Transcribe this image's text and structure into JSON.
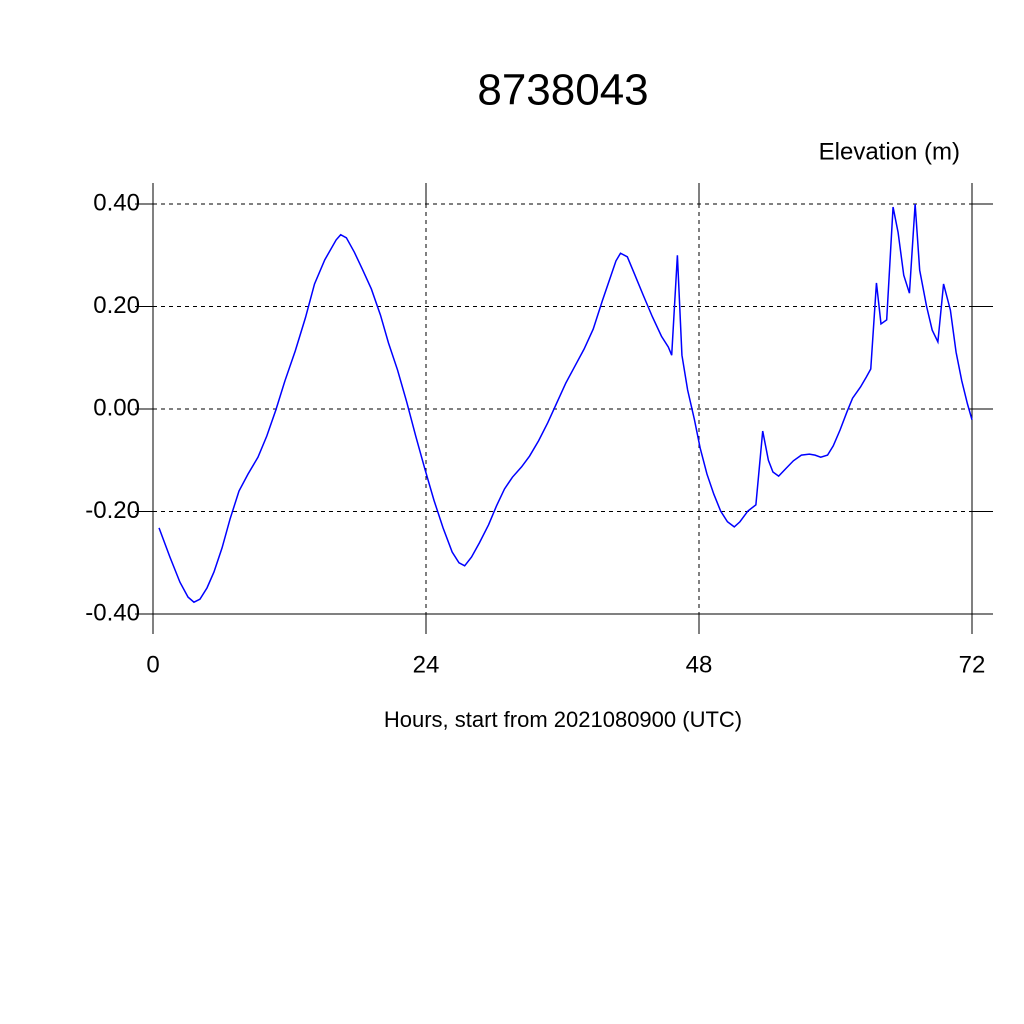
{
  "chart_data": {
    "type": "line",
    "title": "8738043",
    "subtitle": "Elevation (m)",
    "x_label": "Hours, start from 2021080900 (UTC)",
    "xlim": [
      0,
      72
    ],
    "xticks": [
      0,
      24,
      48,
      72
    ],
    "ylim": [
      -0.4,
      0.4
    ],
    "yticks": [
      {
        "value": -0.4,
        "label": "-0.40"
      },
      {
        "value": -0.2,
        "label": "-0.20"
      },
      {
        "value": 0,
        "label": "0.00"
      },
      {
        "value": 0.2,
        "label": "0.20"
      },
      {
        "value": 0.4,
        "label": "0.40"
      }
    ],
    "grid": true,
    "series": [
      {
        "color": "#0000ff",
        "x": [
          0.53,
          1.49,
          2.37,
          3.08,
          3.6,
          4.13,
          4.75,
          5.36,
          6.07,
          6.77,
          7.56,
          8.35,
          9.23,
          10.0,
          10.8,
          11.6,
          12.5,
          13.4,
          14.2,
          15.1,
          16.1,
          16.5,
          17.0,
          17.7,
          18.4,
          19.2,
          20.0,
          20.7,
          21.5,
          22.3,
          23.1,
          23.9,
          24.7,
          25.5,
          26.3,
          26.9,
          27.4,
          28.0,
          28.7,
          29.5,
          30.2,
          30.9,
          31.6,
          32.4,
          33.1,
          33.9,
          34.7,
          35.5,
          36.3,
          37.1,
          37.9,
          38.7,
          39.5,
          40.3,
          40.7,
          41.1,
          41.7,
          42.3,
          43.1,
          43.9,
          44.7,
          45.3,
          45.6,
          46.1,
          46.5,
          47.0,
          47.6,
          48.1,
          48.7,
          49.3,
          49.9,
          50.5,
          51.1,
          51.6,
          52.3,
          53.0,
          53.6,
          54.1,
          54.5,
          55.0,
          55.6,
          56.3,
          57.0,
          57.7,
          58.2,
          58.7,
          59.3,
          59.8,
          60.4,
          61.0,
          61.5,
          62.2,
          62.7,
          63.1,
          63.6,
          64.0,
          64.5,
          65.06,
          65.5,
          66.0,
          66.5,
          67.0,
          67.4,
          68.0,
          68.5,
          69.0,
          69.5,
          70.1,
          70.6,
          71.1,
          71.6,
          72.0
        ],
        "values": [
          -0.232,
          -0.289,
          -0.338,
          -0.367,
          -0.377,
          -0.371,
          -0.349,
          -0.318,
          -0.271,
          -0.215,
          -0.16,
          -0.127,
          -0.094,
          -0.053,
          -0.002,
          0.055,
          0.113,
          0.178,
          0.244,
          0.291,
          0.33,
          0.34,
          0.334,
          0.306,
          0.273,
          0.234,
          0.183,
          0.129,
          0.076,
          0.014,
          -0.053,
          -0.117,
          -0.178,
          -0.232,
          -0.279,
          -0.3,
          -0.306,
          -0.289,
          -0.261,
          -0.226,
          -0.189,
          -0.156,
          -0.133,
          -0.113,
          -0.092,
          -0.062,
          -0.027,
          0.012,
          0.051,
          0.084,
          0.117,
          0.156,
          0.211,
          0.263,
          0.289,
          0.304,
          0.297,
          0.265,
          0.222,
          0.18,
          0.142,
          0.121,
          0.105,
          0.3,
          0.105,
          0.037,
          -0.021,
          -0.076,
          -0.127,
          -0.166,
          -0.199,
          -0.22,
          -0.23,
          -0.22,
          -0.199,
          -0.187,
          -0.043,
          -0.1,
          -0.123,
          -0.131,
          -0.117,
          -0.101,
          -0.09,
          -0.088,
          -0.09,
          -0.094,
          -0.09,
          -0.072,
          -0.041,
          -0.006,
          0.021,
          0.043,
          0.062,
          0.078,
          0.246,
          0.166,
          0.174,
          0.394,
          0.345,
          0.261,
          0.226,
          0.4,
          0.271,
          0.201,
          0.154,
          0.131,
          0.244,
          0.193,
          0.111,
          0.055,
          0.01,
          -0.021
        ]
      }
    ]
  }
}
